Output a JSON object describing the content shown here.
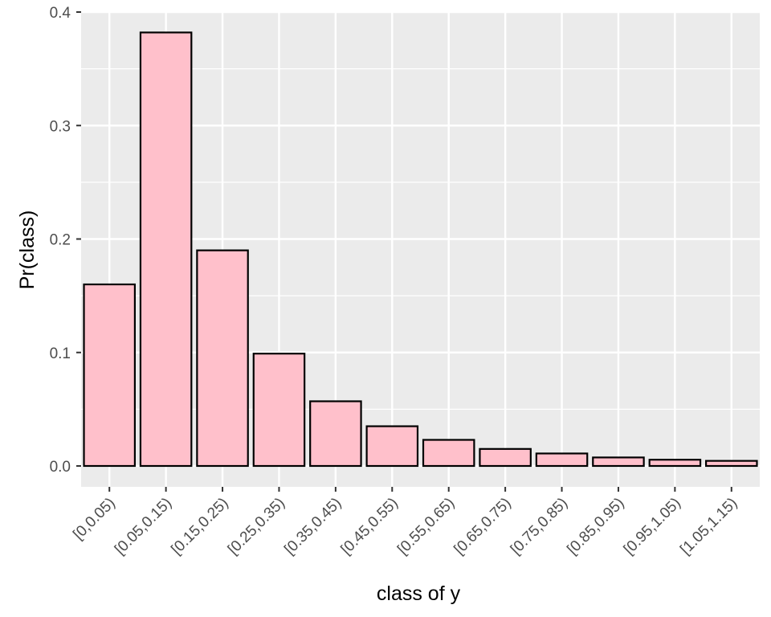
{
  "chart_data": {
    "type": "bar",
    "title": "",
    "xlabel": "class of y",
    "ylabel": "Pr(class)",
    "categories": [
      "[0,0.05)",
      "[0.05,0.15)",
      "[0.15,0.25)",
      "[0.25,0.35)",
      "[0.35,0.45)",
      "[0.45,0.55)",
      "[0.55,0.65)",
      "[0.65,0.75)",
      "[0.75,0.85)",
      "[0.85,0.95)",
      "[0.95,1.05)",
      "[1.05,1.15)"
    ],
    "values": [
      0.16,
      0.382,
      0.19,
      0.099,
      0.057,
      0.035,
      0.023,
      0.015,
      0.011,
      0.0075,
      0.0055,
      0.0045
    ],
    "ylim": [
      -0.0178,
      0.4
    ],
    "yticks": [
      0.0,
      0.1,
      0.2,
      0.3,
      0.4
    ],
    "ytick_labels": [
      "0.0",
      "0.1",
      "0.2",
      "0.3",
      "0.4"
    ],
    "grid": true,
    "legend": "none",
    "colors": {
      "panel_background": "#ebebeb",
      "grid_line": "#ffffff",
      "bar_fill": "#ffc0cb",
      "bar_outline": "#000000",
      "tick_text": "#4d4d4d",
      "axis_title": "#000000"
    }
  }
}
